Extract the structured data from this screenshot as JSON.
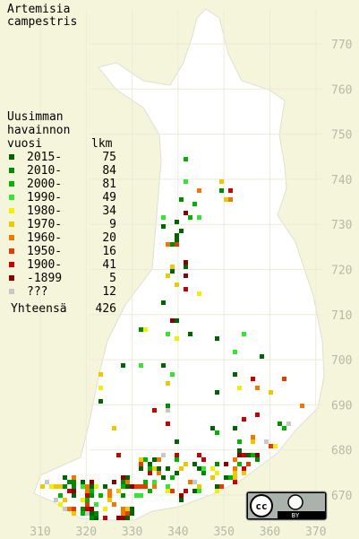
{
  "title": [
    "Artemisia",
    "campestris"
  ],
  "legend": {
    "header": [
      "Uusimman",
      "havainnon"
    ],
    "col_year": "vuosi",
    "col_count": "lkm",
    "rows": [
      {
        "label": "2015-",
        "count": 75,
        "color": "#006400"
      },
      {
        "label": "2010-",
        "count": 84,
        "color": "#008c00"
      },
      {
        "label": "2000-",
        "count": 81,
        "color": "#00b400"
      },
      {
        "label": "1990-",
        "count": 49,
        "color": "#32e632"
      },
      {
        "label": "1980-",
        "count": 34,
        "color": "#f0f000"
      },
      {
        "label": "1970-",
        "count": 9,
        "color": "#f0c800"
      },
      {
        "label": "1960-",
        "count": 20,
        "color": "#f07800"
      },
      {
        "label": "1950-",
        "count": 16,
        "color": "#e63c00"
      },
      {
        "label": "1900-",
        "count": 41,
        "color": "#c80000"
      },
      {
        "label": "-1899",
        "count": 5,
        "color": "#8c0000"
      },
      {
        "label": "???",
        "count": 12,
        "color": "#c8c8c8"
      }
    ],
    "total_label": "Yhteensä",
    "total": 426
  },
  "northing_ticks": [
    770,
    760,
    750,
    740,
    730,
    720,
    710,
    700,
    690,
    680,
    670
  ],
  "easting_ticks": [
    310,
    320,
    330,
    340,
    350,
    360,
    370
  ],
  "badge": {
    "cc": "cc",
    "by": "BY"
  }
}
